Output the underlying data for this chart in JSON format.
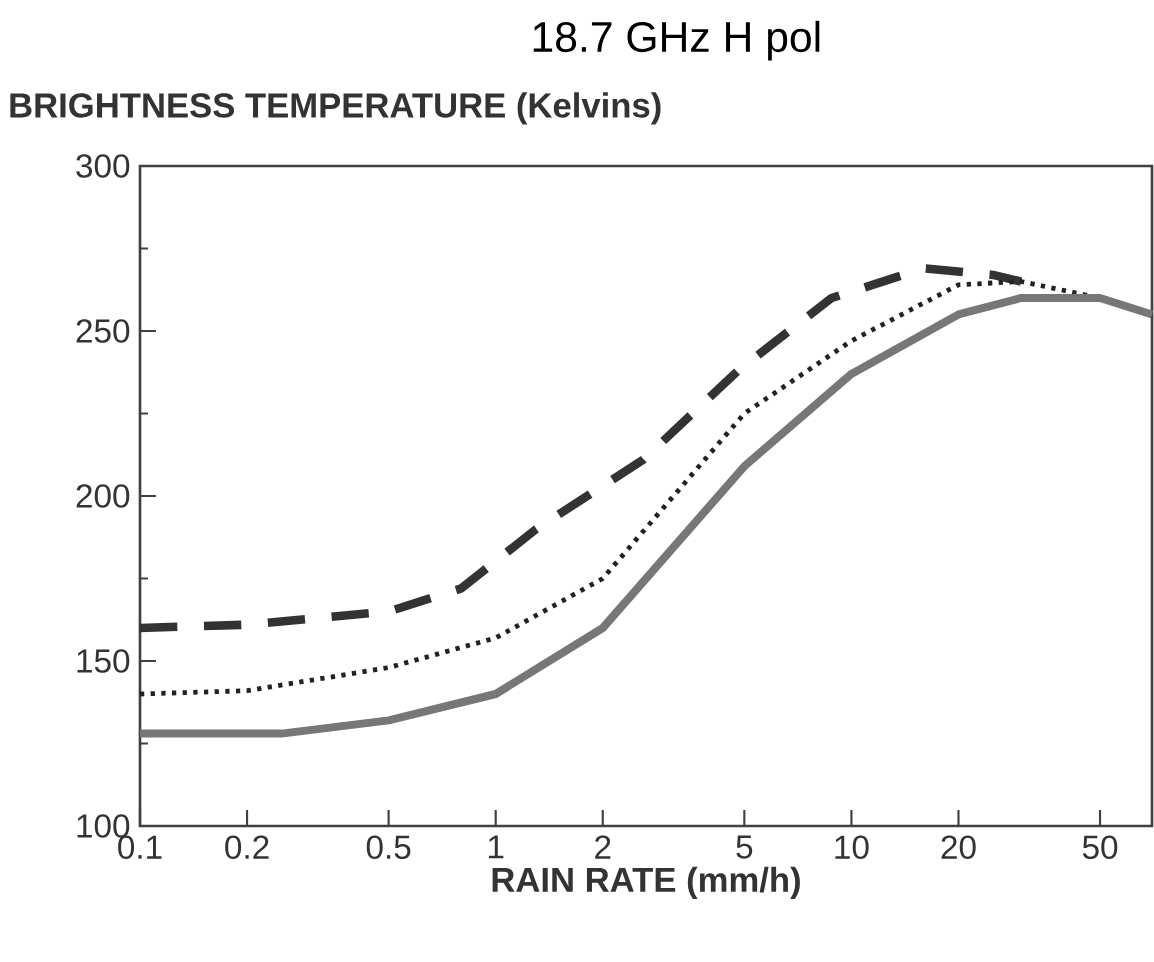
{
  "chart_data": {
    "type": "line",
    "title": "18.7 GHz H pol",
    "ylabel": "BRIGHTNESS TEMPERATURE (Kelvins)",
    "xlabel": "RAIN RATE (mm/h)",
    "log": "x",
    "grid": false,
    "marker": "none",
    "xlim": [
      0.1,
      70
    ],
    "ylim": [
      100,
      300
    ],
    "xticks": [
      0.1,
      0.2,
      0.5,
      1,
      2,
      5,
      10,
      20,
      50
    ],
    "yticks": [
      100,
      150,
      200,
      250,
      300
    ],
    "series": [
      {
        "color": "#333333",
        "line_style": "dashed",
        "x": [
          0.1,
          0.2,
          0.5,
          0.8,
          1.3,
          2.6,
          4.8,
          8.8,
          16,
          25,
          30
        ],
        "values": [
          160,
          161,
          165,
          172,
          190,
          211,
          238,
          260,
          269,
          267,
          265
        ]
      },
      {
        "color": "#222222",
        "line_style": "dotted",
        "x": [
          0.1,
          0.2,
          0.5,
          1,
          2,
          5,
          10,
          20,
          30,
          50,
          70
        ],
        "values": [
          140,
          141,
          148,
          157,
          175,
          225,
          247,
          264,
          265,
          260,
          255
        ]
      },
      {
        "color": "#777777",
        "line_style": "solid",
        "x": [
          0.1,
          0.25,
          0.5,
          1,
          2,
          5,
          10,
          20,
          30,
          50,
          70
        ],
        "values": [
          128,
          128,
          132,
          140,
          160,
          209,
          237,
          255,
          260,
          260,
          255
        ]
      }
    ]
  }
}
